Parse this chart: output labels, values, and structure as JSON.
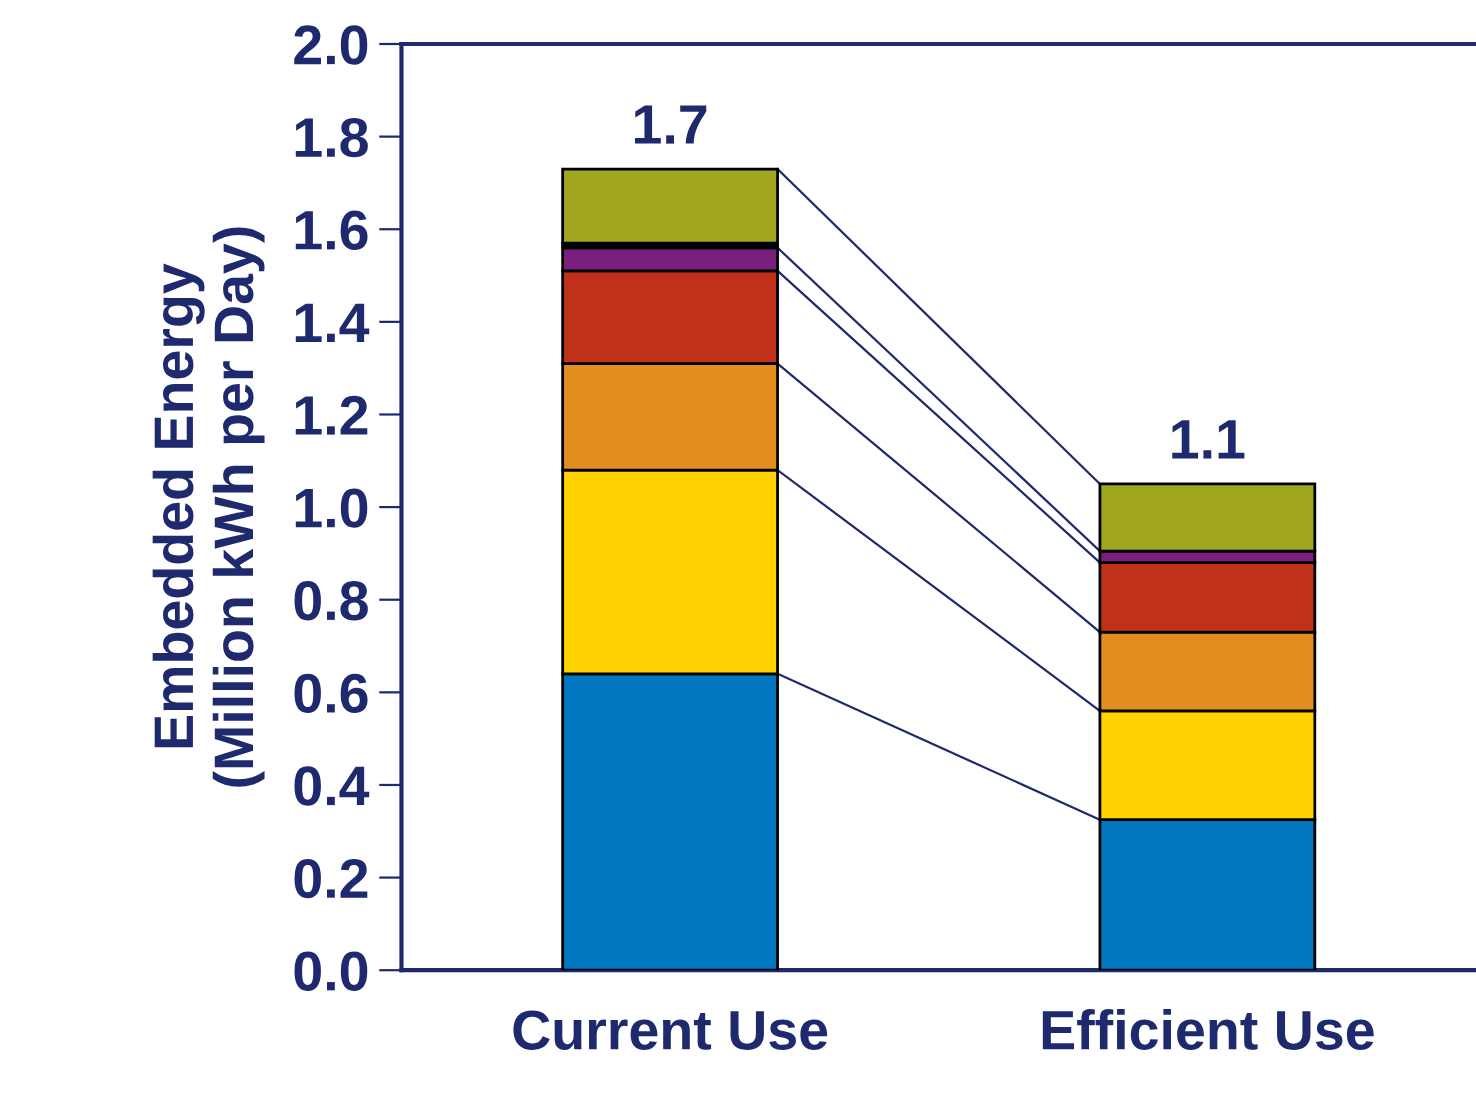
{
  "chart_data": {
    "type": "bar",
    "stacked": true,
    "ylabel": "Embedded Energy\n(Million kWh per Day)",
    "categories": [
      "Current Use",
      "Efficient Use"
    ],
    "series": [
      {
        "color": "#0077c0",
        "values": [
          0.64,
          0.325
        ]
      },
      {
        "color": "#ffd200",
        "values": [
          0.44,
          0.235
        ]
      },
      {
        "color": "#e38d1e",
        "values": [
          0.23,
          0.17
        ]
      },
      {
        "color": "#c0311c",
        "values": [
          0.2,
          0.15
        ]
      },
      {
        "color": "#7b1f7e",
        "values": [
          0.05,
          0.025
        ]
      },
      {
        "color": "#000000",
        "values": [
          0.01,
          null
        ]
      },
      {
        "color": "#a0a61e",
        "values": [
          0.16,
          0.145
        ]
      }
    ],
    "totals": [
      "1.7",
      "1.1"
    ],
    "ylim": [
      0,
      2.0
    ],
    "yticks": [
      {
        "value": 0,
        "label": "0.0"
      },
      {
        "value": 0.2,
        "label": "0.2"
      },
      {
        "value": 0.4,
        "label": "0.4"
      },
      {
        "value": 0.6,
        "label": "0.6"
      },
      {
        "value": 0.8,
        "label": "0.8"
      },
      {
        "value": 1.0,
        "label": "1.0"
      },
      {
        "value": 1.2,
        "label": "1.2"
      },
      {
        "value": 1.4,
        "label": "1.4"
      },
      {
        "value": 1.6,
        "label": "1.6"
      },
      {
        "value": 1.8,
        "label": "1.8"
      },
      {
        "value": 2.0,
        "label": "2.0"
      }
    ],
    "grid": false,
    "legend": false
  }
}
